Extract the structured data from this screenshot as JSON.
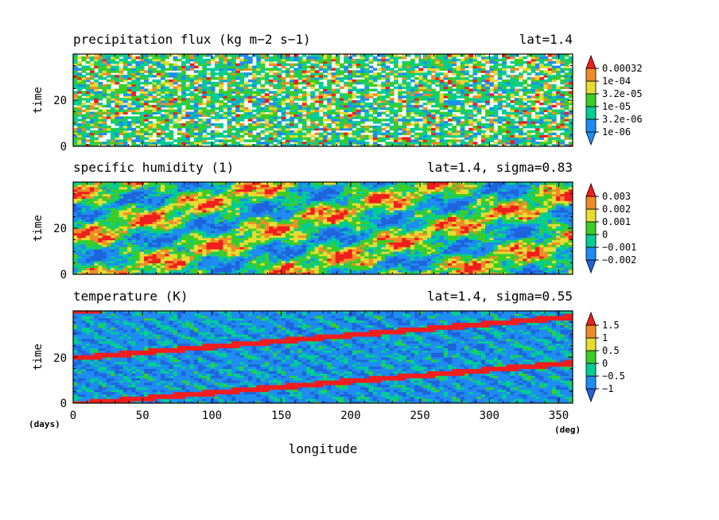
{
  "colors": {
    "scale": [
      "#1e8cf0",
      "#00cc96",
      "#3ccc28",
      "#e6dc32",
      "#f08c28",
      "#f01e1e"
    ],
    "precip_scale": [
      "#1e8cf0",
      "#1e8cf0",
      "#00cc96",
      "#3ccc28",
      "#e6dc32",
      "#f08c28",
      "#f01e1e"
    ],
    "q_scale": [
      "#1e64dc",
      "#1e8cf0",
      "#00cc96",
      "#3ccc28",
      "#e6dc32",
      "#f08c28",
      "#f01e1e"
    ],
    "t_scale": [
      "#1e64dc",
      "#1e8cf0",
      "#00cc96",
      "#3ccc28",
      "#e6dc32",
      "#f08c28",
      "#f01e1e"
    ]
  },
  "axes": {
    "xlabel": "longitude",
    "xunit": "(deg)",
    "yunit": "(days)",
    "ylabel": "time",
    "xticks": [
      "0",
      "50",
      "100",
      "150",
      "200",
      "250",
      "300",
      "350"
    ],
    "yticks": [
      "0",
      "20"
    ]
  },
  "chart_data": [
    {
      "type": "heatmap",
      "title": "precipitation flux (kg m−2 s−1)",
      "subtitle": "lat=1.4",
      "xlabel": "",
      "ylabel": "time",
      "xlim": [
        0,
        360
      ],
      "ylim": [
        0,
        40
      ],
      "colorbar": [
        "0.00032",
        "1e-04",
        "3.2e-05",
        "1e-05",
        "3.2e-06",
        "1e-06"
      ],
      "colorbar_values": [
        0.00032,
        0.0001,
        3.2e-05,
        1e-05,
        3.2e-06,
        1e-06
      ],
      "scale": "log",
      "pattern": "random convective cells, many white (below 1e-06) gaps"
    },
    {
      "type": "heatmap",
      "title": "specific humidity (1)",
      "subtitle": "lat=1.4, sigma=0.83",
      "xlabel": "",
      "ylabel": "time",
      "xlim": [
        0,
        360
      ],
      "ylim": [
        0,
        40
      ],
      "colorbar": [
        "0.003",
        "0.002",
        "0.001",
        "0",
        "−0.001",
        "−0.002"
      ],
      "colorbar_values": [
        0.003,
        0.002,
        0.001,
        0,
        -0.001,
        -0.002
      ],
      "pattern": "eastward-propagating moist band"
    },
    {
      "type": "heatmap",
      "title": "temperature (K)",
      "subtitle": "lat=1.4, sigma=0.55",
      "xlabel": "longitude",
      "ylabel": "time",
      "xlim": [
        0,
        360
      ],
      "ylim": [
        0,
        40
      ],
      "colorbar": [
        "1.5",
        "1",
        "0.5",
        "0",
        "−0.5",
        "−1"
      ],
      "colorbar_values": [
        1.5,
        1,
        0.5,
        0,
        -0.5,
        -1
      ],
      "pattern": "diagonal warm (red) bands rising eastward, period ~20 days"
    }
  ]
}
